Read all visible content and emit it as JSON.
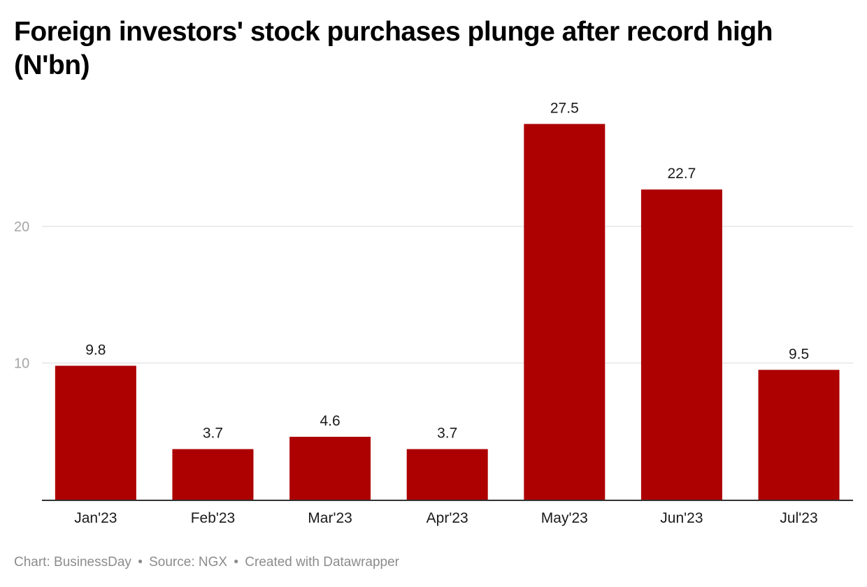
{
  "chart_data": {
    "type": "bar",
    "title": "Foreign investors' stock purchases plunge after record high (N'bn)",
    "xlabel": "",
    "ylabel": "",
    "categories": [
      "Jan'23",
      "Feb'23",
      "Mar'23",
      "Apr'23",
      "May'23",
      "Jun'23",
      "Jul'23"
    ],
    "values": [
      9.8,
      3.7,
      4.6,
      3.7,
      27.5,
      22.7,
      9.5
    ],
    "value_labels": [
      "9.8",
      "3.7",
      "4.6",
      "3.7",
      "27.5",
      "22.7",
      "9.5"
    ],
    "ylim": [
      0,
      29
    ],
    "yticks": [
      10,
      20
    ],
    "ytick_labels": [
      "10",
      "20"
    ],
    "grid": true,
    "legend": "none",
    "bar_color": "#ad0000",
    "grid_color": "#e6e6e6",
    "axis_color": "#333333",
    "tick_label_color": "#a6a6a6"
  },
  "footer": {
    "chart_credit": "Chart: BusinessDay",
    "source": "Source: NGX",
    "created_with": "Created with Datawrapper",
    "separator": "•"
  }
}
